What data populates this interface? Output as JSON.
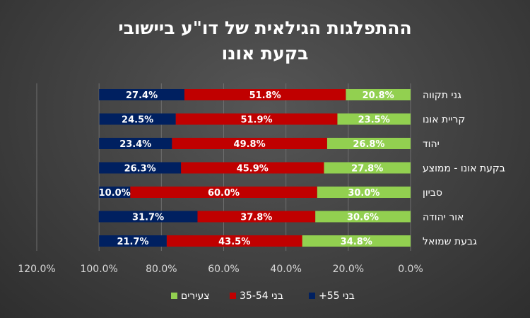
{
  "chart_data": {
    "type": "bar",
    "orientation": "horizontal",
    "stacked": true,
    "x_axis_reversed": true,
    "title_lines": [
      "ההתפלגות הגילאית של דו\"ע ביישובי",
      "בקעת אונו"
    ],
    "categories": [
      "גני תקווה",
      "קריית אונו",
      "יהוד",
      "בקעת אונו - ממוצע",
      "סביון",
      "אור יהודה",
      "גבעת שמואל"
    ],
    "series": [
      {
        "name": "צעירים",
        "color": "#92d050",
        "values": [
          20.8,
          23.5,
          26.8,
          27.8,
          30.0,
          30.6,
          34.8
        ],
        "labels": [
          "20.8%",
          "23.5%",
          "26.8%",
          "27.8%",
          "30.0%",
          "30.6%",
          "34.8%"
        ]
      },
      {
        "name": "בני 35-54",
        "color": "#c00000",
        "values": [
          51.8,
          51.9,
          49.8,
          45.9,
          60.0,
          37.8,
          43.5
        ],
        "labels": [
          "51.8%",
          "51.9%",
          "49.8%",
          "45.9%",
          "60.0%",
          "37.8%",
          "43.5%"
        ]
      },
      {
        "name": "בני 55+",
        "color": "#002060",
        "values": [
          27.4,
          24.5,
          23.4,
          26.3,
          10.0,
          31.7,
          21.7
        ],
        "labels": [
          "27.4%",
          "24.5%",
          "23.4%",
          "26.3%",
          "10.0%",
          "31.7%",
          "21.7%"
        ]
      }
    ],
    "x_ticks": [
      "120.0%",
      "100.0%",
      "80.0%",
      "60.0%",
      "40.0%",
      "20.0%",
      "0.0%"
    ],
    "xlim": [
      0,
      120
    ],
    "grid": "vertical",
    "legend_position": "bottom",
    "legend_labels": [
      "צעירים",
      "35-54 בני",
      "+55 בני"
    ]
  }
}
